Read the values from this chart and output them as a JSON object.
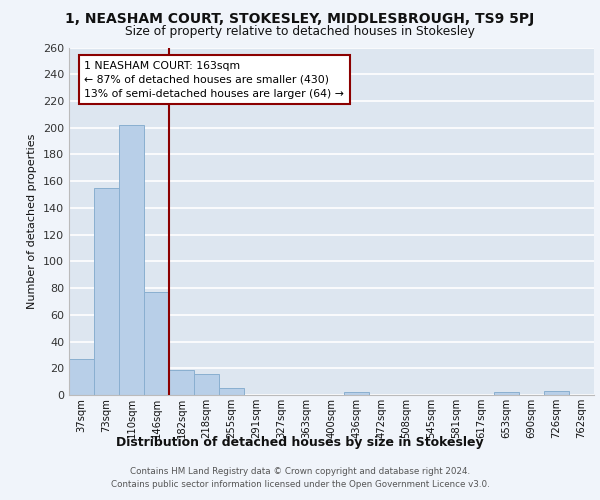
{
  "title": "1, NEASHAM COURT, STOKESLEY, MIDDLESBROUGH, TS9 5PJ",
  "subtitle": "Size of property relative to detached houses in Stokesley",
  "xlabel": "Distribution of detached houses by size in Stokesley",
  "ylabel": "Number of detached properties",
  "bar_labels": [
    "37sqm",
    "73sqm",
    "110sqm",
    "146sqm",
    "182sqm",
    "218sqm",
    "255sqm",
    "291sqm",
    "327sqm",
    "363sqm",
    "400sqm",
    "436sqm",
    "472sqm",
    "508sqm",
    "545sqm",
    "581sqm",
    "617sqm",
    "653sqm",
    "690sqm",
    "726sqm",
    "762sqm"
  ],
  "bar_values": [
    27,
    155,
    202,
    77,
    19,
    16,
    5,
    0,
    0,
    0,
    0,
    2,
    0,
    0,
    0,
    0,
    0,
    2,
    0,
    3,
    0
  ],
  "bar_color": "#b8cfe8",
  "bar_edge_color": "#8aafd0",
  "vline_x": 3.5,
  "vline_color": "#8b0000",
  "annotation_text": "1 NEASHAM COURT: 163sqm\n← 87% of detached houses are smaller (430)\n13% of semi-detached houses are larger (64) →",
  "annotation_box_color": "#ffffff",
  "annotation_box_edge": "#8b0000",
  "ylim": [
    0,
    260
  ],
  "yticks": [
    0,
    20,
    40,
    60,
    80,
    100,
    120,
    140,
    160,
    180,
    200,
    220,
    240,
    260
  ],
  "background_color": "#dde6f0",
  "fig_background_color": "#f0f4fa",
  "grid_color": "#ffffff",
  "footer_line1": "Contains HM Land Registry data © Crown copyright and database right 2024.",
  "footer_line2": "Contains public sector information licensed under the Open Government Licence v3.0."
}
